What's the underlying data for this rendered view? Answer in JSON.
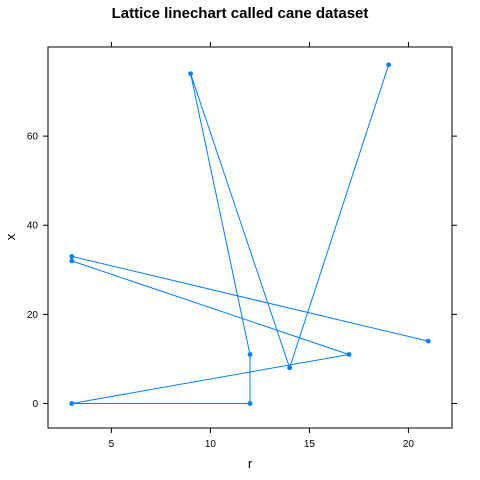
{
  "chart_data": {
    "type": "line",
    "title": "Lattice linechart called cane dataset",
    "xlabel": "r",
    "ylabel": "x",
    "xlim": [
      1.8,
      22.2
    ],
    "ylim": [
      -5.5,
      80
    ],
    "x_ticks": [
      5,
      10,
      15,
      20
    ],
    "y_ticks": [
      0,
      20,
      40,
      60
    ],
    "grid": false,
    "line_color": "#0080ff",
    "series": [
      {
        "x": [
          19,
          14,
          9,
          12,
          12,
          3,
          17,
          3,
          3,
          21
        ],
        "y": [
          76,
          8,
          74,
          11,
          0,
          0,
          11,
          32,
          33,
          14
        ]
      }
    ]
  }
}
